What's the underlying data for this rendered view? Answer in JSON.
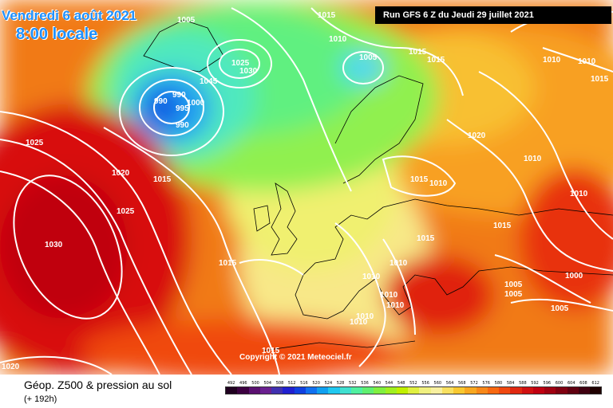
{
  "header": {
    "valid_date": "Vendredi 6 août 2021",
    "local_time": "8:00 locale",
    "run_info": "Run GFS 6 Z du Jeudi 29 juillet 2021"
  },
  "copyright": "Copyright © 2021 Meteociel.fr",
  "footer": {
    "field_name": "Géop. Z500 & pression au sol",
    "lead_time": "(+ 192h)"
  },
  "colors": {
    "scale": [
      "#200020",
      "#3c0040",
      "#5a1070",
      "#6a2090",
      "#4030b0",
      "#2020d0",
      "#1040e0",
      "#1070f0",
      "#10a0f0",
      "#20c8f0",
      "#40e0d0",
      "#50f0a0",
      "#60f070",
      "#80f040",
      "#a0f020",
      "#c0f000",
      "#e0f040",
      "#f0f080",
      "#f8f0a0",
      "#f8e060",
      "#f8c830",
      "#f8a820",
      "#f88818",
      "#f86810",
      "#f04810",
      "#e02810",
      "#d01010",
      "#c00010",
      "#a00010",
      "#800010",
      "#600010",
      "#400010",
      "#200000"
    ]
  },
  "scale_labels": [
    "492",
    "496",
    "500",
    "504",
    "508",
    "512",
    "516",
    "520",
    "524",
    "528",
    "532",
    "536",
    "540",
    "544",
    "548",
    "552",
    "556",
    "560",
    "564",
    "568",
    "572",
    "576",
    "580",
    "584",
    "588",
    "592",
    "596",
    "600",
    "604",
    "608",
    "612"
  ],
  "pressure_labels": [
    "1005",
    "1015",
    "1010",
    "1005",
    "1015",
    "1015",
    "1010",
    "1010",
    "1015",
    "1030",
    "1025",
    "1045",
    "990",
    "990",
    "995",
    "1000",
    "990",
    "1025",
    "1020",
    "1015",
    "1025",
    "1030",
    "1015",
    "1020",
    "1010",
    "1015",
    "1010",
    "1010",
    "1015",
    "1015",
    "1010",
    "1010",
    "1010",
    "1005",
    "1005",
    "1000",
    "1005",
    "1010",
    "1010",
    "1010",
    "1015",
    "1020"
  ]
}
